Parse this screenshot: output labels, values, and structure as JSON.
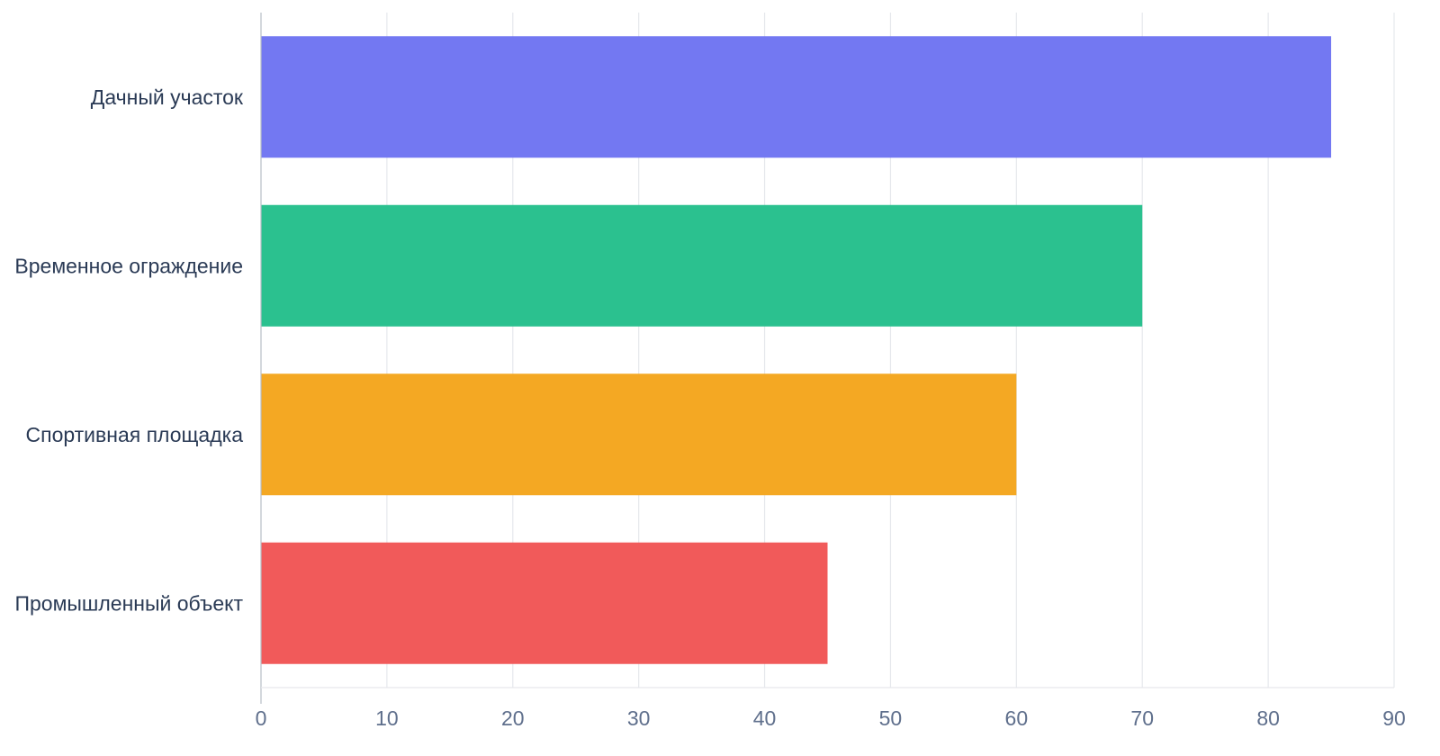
{
  "chart_data": {
    "type": "bar",
    "orientation": "horizontal",
    "categories": [
      "Дачный участок",
      "Временное ограждение",
      "Спортивная площадка",
      "Промышленный объект"
    ],
    "values": [
      85,
      70,
      60,
      45
    ],
    "colors": [
      "#7378f2",
      "#2bc18f",
      "#f4a823",
      "#f15a5a"
    ],
    "xlim": [
      0,
      90
    ],
    "xticks": [
      "0",
      "10",
      "20",
      "30",
      "40",
      "50",
      "60",
      "70",
      "80",
      "90"
    ],
    "grid": true,
    "title": "",
    "xlabel": "",
    "ylabel": ""
  }
}
